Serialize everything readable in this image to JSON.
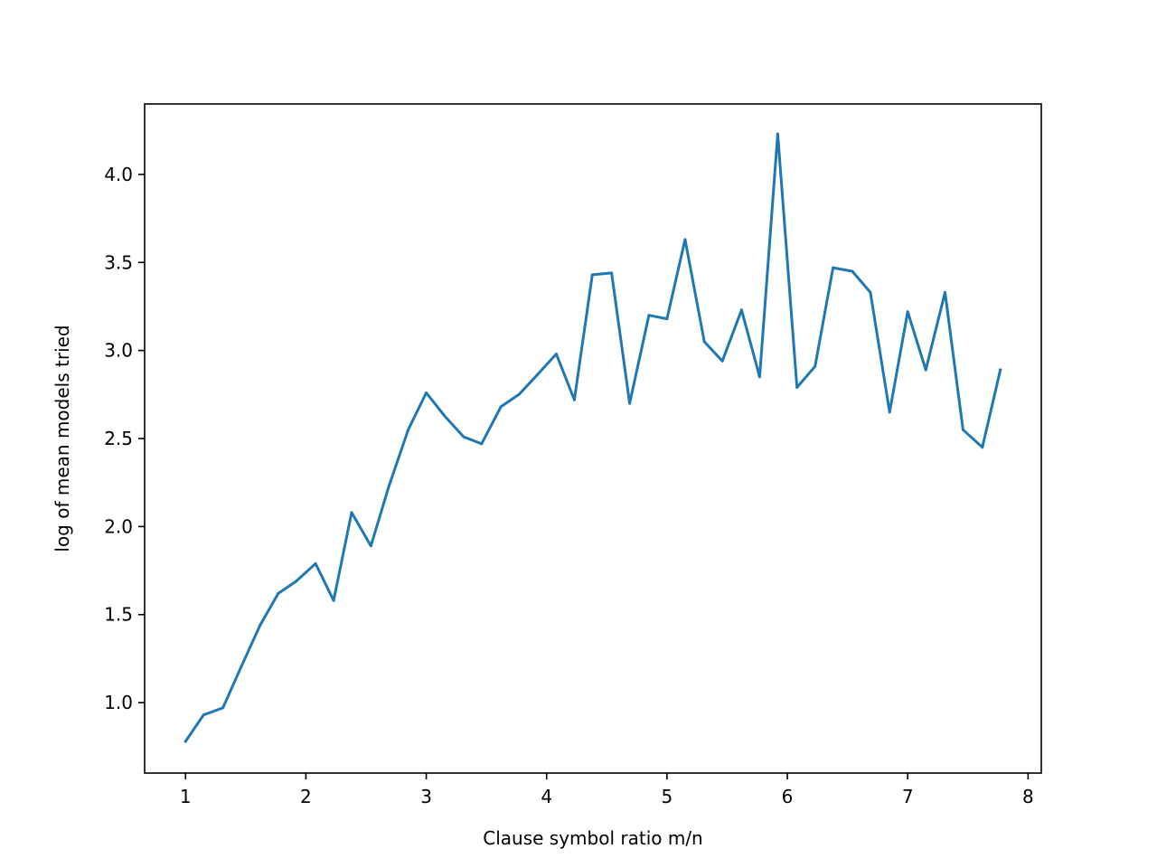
{
  "chart_data": {
    "type": "line",
    "title": "",
    "xlabel": "Clause symbol ratio m/n",
    "ylabel": "log of mean models tried",
    "xlim": [
      0.66,
      8.11
    ],
    "ylim": [
      0.6,
      4.4
    ],
    "xticks": [
      1,
      2,
      3,
      4,
      5,
      6,
      7,
      8
    ],
    "xtick_labels": [
      "1",
      "2",
      "3",
      "4",
      "5",
      "6",
      "7",
      "8"
    ],
    "yticks": [
      1.0,
      1.5,
      2.0,
      2.5,
      3.0,
      3.5,
      4.0
    ],
    "ytick_labels": [
      "1.0",
      "1.5",
      "2.0",
      "2.5",
      "3.0",
      "3.5",
      "4.0"
    ],
    "grid": false,
    "series": [
      {
        "color": "#1f77b4",
        "x": [
          1.0,
          1.15,
          1.31,
          1.46,
          1.62,
          1.77,
          1.92,
          2.08,
          2.23,
          2.38,
          2.54,
          2.69,
          2.85,
          3.0,
          3.15,
          3.31,
          3.46,
          3.62,
          3.77,
          3.92,
          4.08,
          4.23,
          4.38,
          4.54,
          4.69,
          4.85,
          5.0,
          5.15,
          5.31,
          5.46,
          5.62,
          5.77,
          5.92,
          6.08,
          6.23,
          6.38,
          6.54,
          6.69,
          6.85,
          7.0,
          7.15,
          7.31,
          7.46,
          7.62,
          7.77
        ],
        "y": [
          0.78,
          0.93,
          0.97,
          1.2,
          1.44,
          1.62,
          1.69,
          1.79,
          1.58,
          2.08,
          1.89,
          2.23,
          2.55,
          2.76,
          2.63,
          2.51,
          2.47,
          2.68,
          2.75,
          2.86,
          2.98,
          2.72,
          3.43,
          3.44,
          2.7,
          3.2,
          3.18,
          3.63,
          3.05,
          2.94,
          3.23,
          2.85,
          4.23,
          2.79,
          2.91,
          3.47,
          3.45,
          3.33,
          2.65,
          3.22,
          2.89,
          3.33,
          2.55,
          2.45,
          2.89
        ]
      }
    ]
  }
}
